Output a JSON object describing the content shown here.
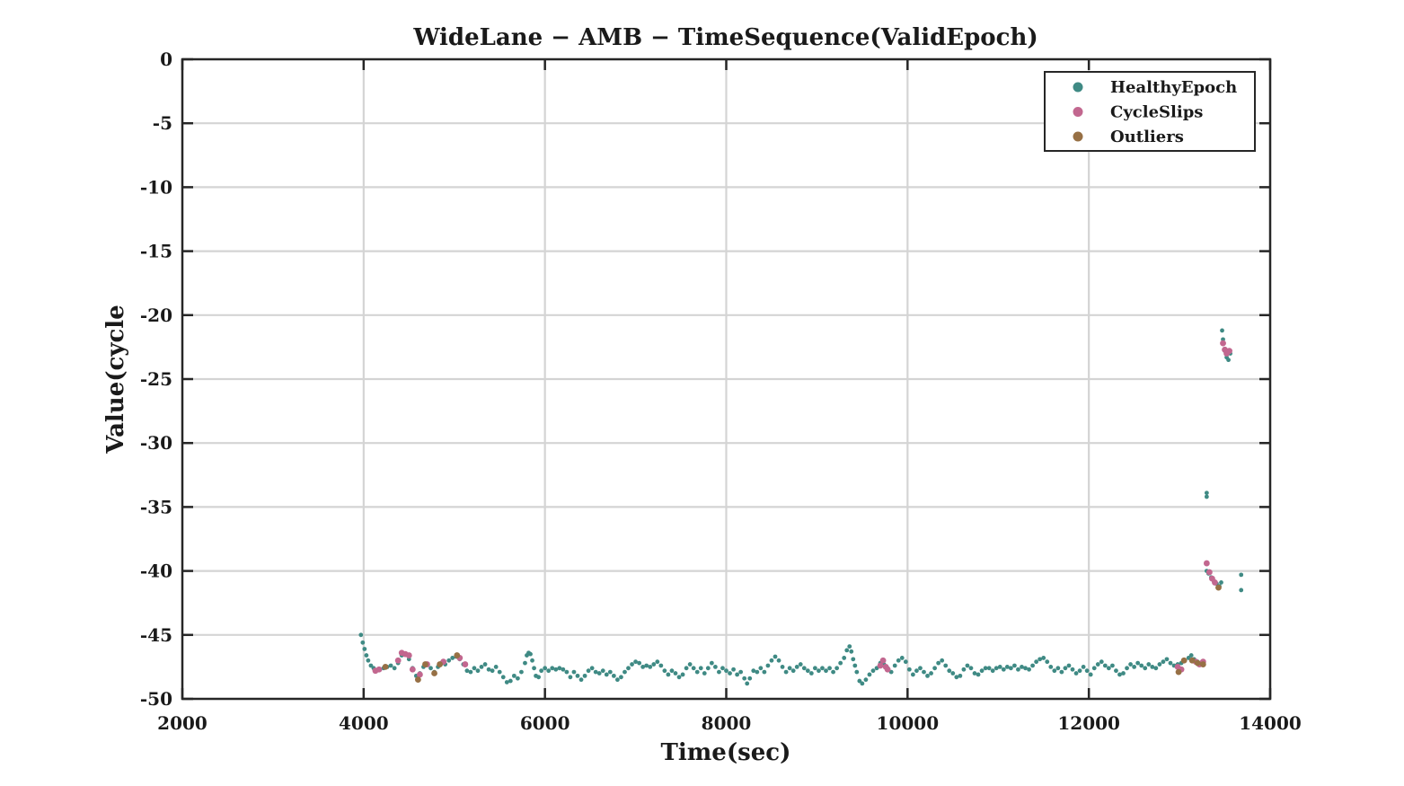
{
  "chart_data": {
    "type": "scatter",
    "title": "WideLane − AMB − TimeSequence(ValidEpoch)",
    "xlabel": "Time(sec)",
    "ylabel": "Value(cycle",
    "xlim": [
      2000,
      14000
    ],
    "ylim": [
      -50,
      0
    ],
    "xticks": [
      2000,
      4000,
      6000,
      8000,
      10000,
      12000,
      14000
    ],
    "yticks": [
      0,
      -5,
      -10,
      -15,
      -20,
      -25,
      -30,
      -35,
      -40,
      -45,
      -50
    ],
    "grid": true,
    "legend_position": "top-right",
    "series": [
      {
        "name": "HealthyEpoch",
        "color": "#3f8a84",
        "points": [
          [
            3970,
            -45.0
          ],
          [
            3990,
            -45.6
          ],
          [
            4010,
            -46.1
          ],
          [
            4030,
            -46.6
          ],
          [
            4050,
            -47.0
          ],
          [
            4080,
            -47.4
          ],
          [
            4110,
            -47.6
          ],
          [
            4140,
            -47.8
          ],
          [
            4180,
            -47.7
          ],
          [
            4220,
            -47.6
          ],
          [
            4260,
            -47.5
          ],
          [
            4300,
            -47.4
          ],
          [
            4340,
            -47.6
          ],
          [
            4380,
            -47.2
          ],
          [
            4420,
            -46.6
          ],
          [
            4460,
            -46.5
          ],
          [
            4500,
            -46.9
          ],
          [
            4540,
            -47.6
          ],
          [
            4580,
            -48.2
          ],
          [
            4620,
            -48.0
          ],
          [
            4660,
            -47.5
          ],
          [
            4700,
            -47.3
          ],
          [
            4740,
            -47.6
          ],
          [
            4780,
            -47.9
          ],
          [
            4820,
            -47.5
          ],
          [
            4860,
            -47.2
          ],
          [
            4900,
            -47.3
          ],
          [
            4940,
            -47.0
          ],
          [
            4980,
            -46.8
          ],
          [
            5020,
            -46.7
          ],
          [
            5060,
            -46.9
          ],
          [
            5100,
            -47.3
          ],
          [
            5140,
            -47.8
          ],
          [
            5180,
            -47.9
          ],
          [
            5220,
            -47.6
          ],
          [
            5260,
            -47.8
          ],
          [
            5300,
            -47.5
          ],
          [
            5340,
            -47.3
          ],
          [
            5380,
            -47.7
          ],
          [
            5420,
            -47.8
          ],
          [
            5460,
            -47.5
          ],
          [
            5500,
            -47.9
          ],
          [
            5540,
            -48.3
          ],
          [
            5580,
            -48.7
          ],
          [
            5620,
            -48.6
          ],
          [
            5660,
            -48.2
          ],
          [
            5700,
            -48.4
          ],
          [
            5740,
            -47.9
          ],
          [
            5780,
            -47.2
          ],
          [
            5800,
            -46.6
          ],
          [
            5820,
            -46.4
          ],
          [
            5840,
            -46.5
          ],
          [
            5860,
            -47.0
          ],
          [
            5880,
            -47.6
          ],
          [
            5900,
            -48.2
          ],
          [
            5930,
            -48.3
          ],
          [
            5960,
            -47.8
          ],
          [
            6000,
            -47.6
          ],
          [
            6040,
            -47.8
          ],
          [
            6080,
            -47.6
          ],
          [
            6120,
            -47.7
          ],
          [
            6160,
            -47.6
          ],
          [
            6200,
            -47.7
          ],
          [
            6240,
            -47.9
          ],
          [
            6280,
            -48.3
          ],
          [
            6320,
            -47.9
          ],
          [
            6360,
            -48.2
          ],
          [
            6400,
            -48.5
          ],
          [
            6440,
            -48.2
          ],
          [
            6480,
            -47.8
          ],
          [
            6520,
            -47.6
          ],
          [
            6560,
            -47.9
          ],
          [
            6600,
            -48.0
          ],
          [
            6640,
            -47.8
          ],
          [
            6680,
            -48.1
          ],
          [
            6720,
            -47.9
          ],
          [
            6760,
            -48.2
          ],
          [
            6800,
            -48.5
          ],
          [
            6840,
            -48.3
          ],
          [
            6880,
            -47.9
          ],
          [
            6920,
            -47.6
          ],
          [
            6960,
            -47.3
          ],
          [
            7000,
            -47.1
          ],
          [
            7040,
            -47.2
          ],
          [
            7080,
            -47.5
          ],
          [
            7120,
            -47.4
          ],
          [
            7160,
            -47.5
          ],
          [
            7200,
            -47.3
          ],
          [
            7240,
            -47.1
          ],
          [
            7280,
            -47.4
          ],
          [
            7320,
            -47.8
          ],
          [
            7360,
            -48.1
          ],
          [
            7400,
            -47.8
          ],
          [
            7440,
            -48.0
          ],
          [
            7480,
            -48.3
          ],
          [
            7520,
            -48.1
          ],
          [
            7560,
            -47.6
          ],
          [
            7600,
            -47.3
          ],
          [
            7640,
            -47.6
          ],
          [
            7680,
            -47.9
          ],
          [
            7720,
            -47.6
          ],
          [
            7760,
            -48.0
          ],
          [
            7800,
            -47.6
          ],
          [
            7840,
            -47.2
          ],
          [
            7880,
            -47.5
          ],
          [
            7920,
            -47.9
          ],
          [
            7960,
            -47.6
          ],
          [
            8000,
            -47.8
          ],
          [
            8040,
            -48.0
          ],
          [
            8080,
            -47.7
          ],
          [
            8120,
            -48.1
          ],
          [
            8160,
            -47.9
          ],
          [
            8200,
            -48.4
          ],
          [
            8230,
            -48.8
          ],
          [
            8260,
            -48.4
          ],
          [
            8300,
            -47.8
          ],
          [
            8340,
            -47.9
          ],
          [
            8380,
            -47.6
          ],
          [
            8420,
            -47.9
          ],
          [
            8460,
            -47.4
          ],
          [
            8500,
            -47.0
          ],
          [
            8540,
            -46.7
          ],
          [
            8580,
            -47.0
          ],
          [
            8620,
            -47.5
          ],
          [
            8660,
            -47.9
          ],
          [
            8700,
            -47.6
          ],
          [
            8740,
            -47.8
          ],
          [
            8780,
            -47.5
          ],
          [
            8820,
            -47.3
          ],
          [
            8860,
            -47.6
          ],
          [
            8900,
            -47.8
          ],
          [
            8940,
            -48.0
          ],
          [
            8980,
            -47.6
          ],
          [
            9020,
            -47.8
          ],
          [
            9060,
            -47.6
          ],
          [
            9100,
            -47.8
          ],
          [
            9140,
            -47.6
          ],
          [
            9180,
            -47.9
          ],
          [
            9220,
            -47.6
          ],
          [
            9260,
            -47.2
          ],
          [
            9300,
            -46.8
          ],
          [
            9330,
            -46.2
          ],
          [
            9360,
            -45.9
          ],
          [
            9380,
            -46.3
          ],
          [
            9400,
            -46.9
          ],
          [
            9420,
            -47.4
          ],
          [
            9440,
            -47.9
          ],
          [
            9470,
            -48.6
          ],
          [
            9500,
            -48.8
          ],
          [
            9540,
            -48.5
          ],
          [
            9580,
            -48.1
          ],
          [
            9620,
            -47.8
          ],
          [
            9660,
            -47.6
          ],
          [
            9700,
            -47.2
          ],
          [
            9740,
            -47.3
          ],
          [
            9780,
            -47.6
          ],
          [
            9820,
            -47.9
          ],
          [
            9860,
            -47.4
          ],
          [
            9900,
            -47.0
          ],
          [
            9940,
            -46.8
          ],
          [
            9980,
            -47.1
          ],
          [
            10020,
            -47.7
          ],
          [
            10060,
            -48.1
          ],
          [
            10100,
            -47.8
          ],
          [
            10140,
            -47.6
          ],
          [
            10180,
            -47.9
          ],
          [
            10220,
            -48.2
          ],
          [
            10260,
            -48.0
          ],
          [
            10300,
            -47.6
          ],
          [
            10340,
            -47.2
          ],
          [
            10380,
            -47.0
          ],
          [
            10420,
            -47.4
          ],
          [
            10460,
            -47.8
          ],
          [
            10500,
            -48.0
          ],
          [
            10540,
            -48.3
          ],
          [
            10580,
            -48.2
          ],
          [
            10620,
            -47.7
          ],
          [
            10660,
            -47.4
          ],
          [
            10700,
            -47.6
          ],
          [
            10740,
            -48.0
          ],
          [
            10780,
            -48.1
          ],
          [
            10820,
            -47.8
          ],
          [
            10860,
            -47.6
          ],
          [
            10900,
            -47.6
          ],
          [
            10940,
            -47.8
          ],
          [
            10980,
            -47.6
          ],
          [
            11020,
            -47.5
          ],
          [
            11060,
            -47.7
          ],
          [
            11100,
            -47.5
          ],
          [
            11140,
            -47.6
          ],
          [
            11180,
            -47.4
          ],
          [
            11220,
            -47.7
          ],
          [
            11260,
            -47.5
          ],
          [
            11300,
            -47.6
          ],
          [
            11340,
            -47.7
          ],
          [
            11380,
            -47.4
          ],
          [
            11420,
            -47.1
          ],
          [
            11460,
            -46.9
          ],
          [
            11500,
            -46.8
          ],
          [
            11540,
            -47.1
          ],
          [
            11580,
            -47.5
          ],
          [
            11620,
            -47.8
          ],
          [
            11660,
            -47.6
          ],
          [
            11700,
            -47.9
          ],
          [
            11740,
            -47.6
          ],
          [
            11780,
            -47.4
          ],
          [
            11820,
            -47.7
          ],
          [
            11860,
            -48.0
          ],
          [
            11900,
            -47.8
          ],
          [
            11940,
            -47.5
          ],
          [
            11980,
            -47.8
          ],
          [
            12020,
            -48.1
          ],
          [
            12060,
            -47.6
          ],
          [
            12100,
            -47.3
          ],
          [
            12140,
            -47.1
          ],
          [
            12180,
            -47.4
          ],
          [
            12220,
            -47.6
          ],
          [
            12260,
            -47.4
          ],
          [
            12300,
            -47.8
          ],
          [
            12340,
            -48.1
          ],
          [
            12380,
            -48.0
          ],
          [
            12420,
            -47.6
          ],
          [
            12460,
            -47.3
          ],
          [
            12500,
            -47.5
          ],
          [
            12540,
            -47.2
          ],
          [
            12580,
            -47.4
          ],
          [
            12620,
            -47.6
          ],
          [
            12660,
            -47.3
          ],
          [
            12700,
            -47.5
          ],
          [
            12740,
            -47.6
          ],
          [
            12780,
            -47.3
          ],
          [
            12820,
            -47.1
          ],
          [
            12860,
            -46.9
          ],
          [
            12900,
            -47.2
          ],
          [
            12940,
            -47.4
          ],
          [
            12980,
            -47.3
          ],
          [
            13020,
            -47.2
          ],
          [
            13060,
            -47.0
          ],
          [
            13100,
            -46.8
          ],
          [
            13130,
            -46.6
          ],
          [
            13160,
            -46.9
          ],
          [
            13200,
            -47.1
          ],
          [
            13240,
            -47.2
          ],
          [
            13300,
            -40.0
          ],
          [
            13320,
            -40.2
          ],
          [
            13350,
            -40.5
          ],
          [
            13380,
            -40.8
          ],
          [
            13410,
            -41.0
          ],
          [
            13440,
            -41.2
          ],
          [
            13460,
            -40.9
          ],
          [
            13300,
            -33.9
          ],
          [
            13300,
            -34.2
          ],
          [
            13470,
            -21.2
          ],
          [
            13480,
            -21.9
          ],
          [
            13500,
            -22.8
          ],
          [
            13520,
            -23.3
          ],
          [
            13540,
            -23.5
          ],
          [
            13560,
            -23.0
          ],
          [
            13680,
            -40.3
          ],
          [
            13680,
            -41.5
          ]
        ]
      },
      {
        "name": "CycleSlips",
        "color": "#c2678f",
        "points": [
          [
            4130,
            -47.8
          ],
          [
            4170,
            -47.7
          ],
          [
            4380,
            -47.0
          ],
          [
            4420,
            -46.4
          ],
          [
            4460,
            -46.5
          ],
          [
            4500,
            -46.6
          ],
          [
            4540,
            -47.7
          ],
          [
            4620,
            -48.1
          ],
          [
            4700,
            -47.3
          ],
          [
            4880,
            -47.1
          ],
          [
            5060,
            -46.8
          ],
          [
            5120,
            -47.3
          ],
          [
            9700,
            -47.4
          ],
          [
            9730,
            -47.0
          ],
          [
            9760,
            -47.5
          ],
          [
            9780,
            -47.7
          ],
          [
            12980,
            -47.5
          ],
          [
            13020,
            -47.7
          ],
          [
            13180,
            -47.1
          ],
          [
            13220,
            -47.3
          ],
          [
            13260,
            -47.1
          ],
          [
            13300,
            -39.4
          ],
          [
            13330,
            -40.1
          ],
          [
            13360,
            -40.6
          ],
          [
            13390,
            -40.9
          ],
          [
            13480,
            -22.2
          ],
          [
            13500,
            -22.7
          ],
          [
            13520,
            -23.0
          ],
          [
            13550,
            -22.8
          ]
        ]
      },
      {
        "name": "Outliers",
        "color": "#977045",
        "points": [
          [
            4240,
            -47.5
          ],
          [
            4600,
            -48.5
          ],
          [
            4680,
            -47.3
          ],
          [
            4780,
            -48.0
          ],
          [
            4840,
            -47.3
          ],
          [
            5030,
            -46.6
          ],
          [
            12990,
            -47.9
          ],
          [
            13050,
            -47.0
          ],
          [
            13140,
            -47.0
          ],
          [
            13200,
            -47.2
          ],
          [
            13260,
            -47.3
          ],
          [
            13430,
            -41.3
          ]
        ]
      }
    ]
  }
}
